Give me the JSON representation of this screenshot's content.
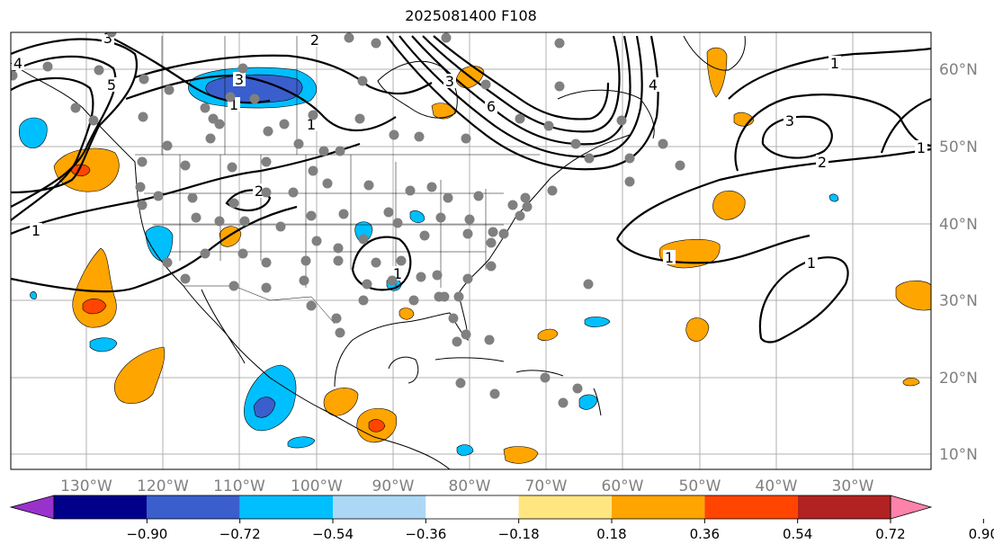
{
  "title": "2025081400 F108",
  "lon_labels": [
    "130°W",
    "120°W",
    "110°W",
    "100°W",
    "90°W",
    "80°W",
    "70°W",
    "60°W",
    "50°W",
    "40°W",
    "30°W"
  ],
  "lat_labels": [
    "60°N",
    "50°N",
    "40°N",
    "30°N",
    "20°N",
    "10°N"
  ],
  "colorbar": {
    "colors": [
      "#9932cc",
      "#00008b",
      "#3a5fcd",
      "#00bfff",
      "#add8f5",
      "#ffffff",
      "#ffe680",
      "#ffa500",
      "#ff4500",
      "#b22222",
      "#ff82ab"
    ],
    "ticks": [
      "−0.90",
      "−0.72",
      "−0.54",
      "−0.36",
      "−0.18",
      "0.18",
      "0.36",
      "0.54",
      "0.72",
      "0.90"
    ]
  },
  "contour_labels": [
    "4",
    "5",
    "3",
    "1",
    "2",
    "1",
    "1",
    "3",
    "6",
    "4",
    "3",
    "2",
    "1",
    "1",
    "1",
    "1",
    "2",
    "3",
    "1"
  ],
  "colors": {
    "orange": "#ffa500",
    "red": "#ff4500",
    "skyblue": "#00bfff",
    "blue": "#3a5fcd",
    "station": "#808080",
    "grid": "#b0b0b0",
    "axis_label": "#808080"
  }
}
